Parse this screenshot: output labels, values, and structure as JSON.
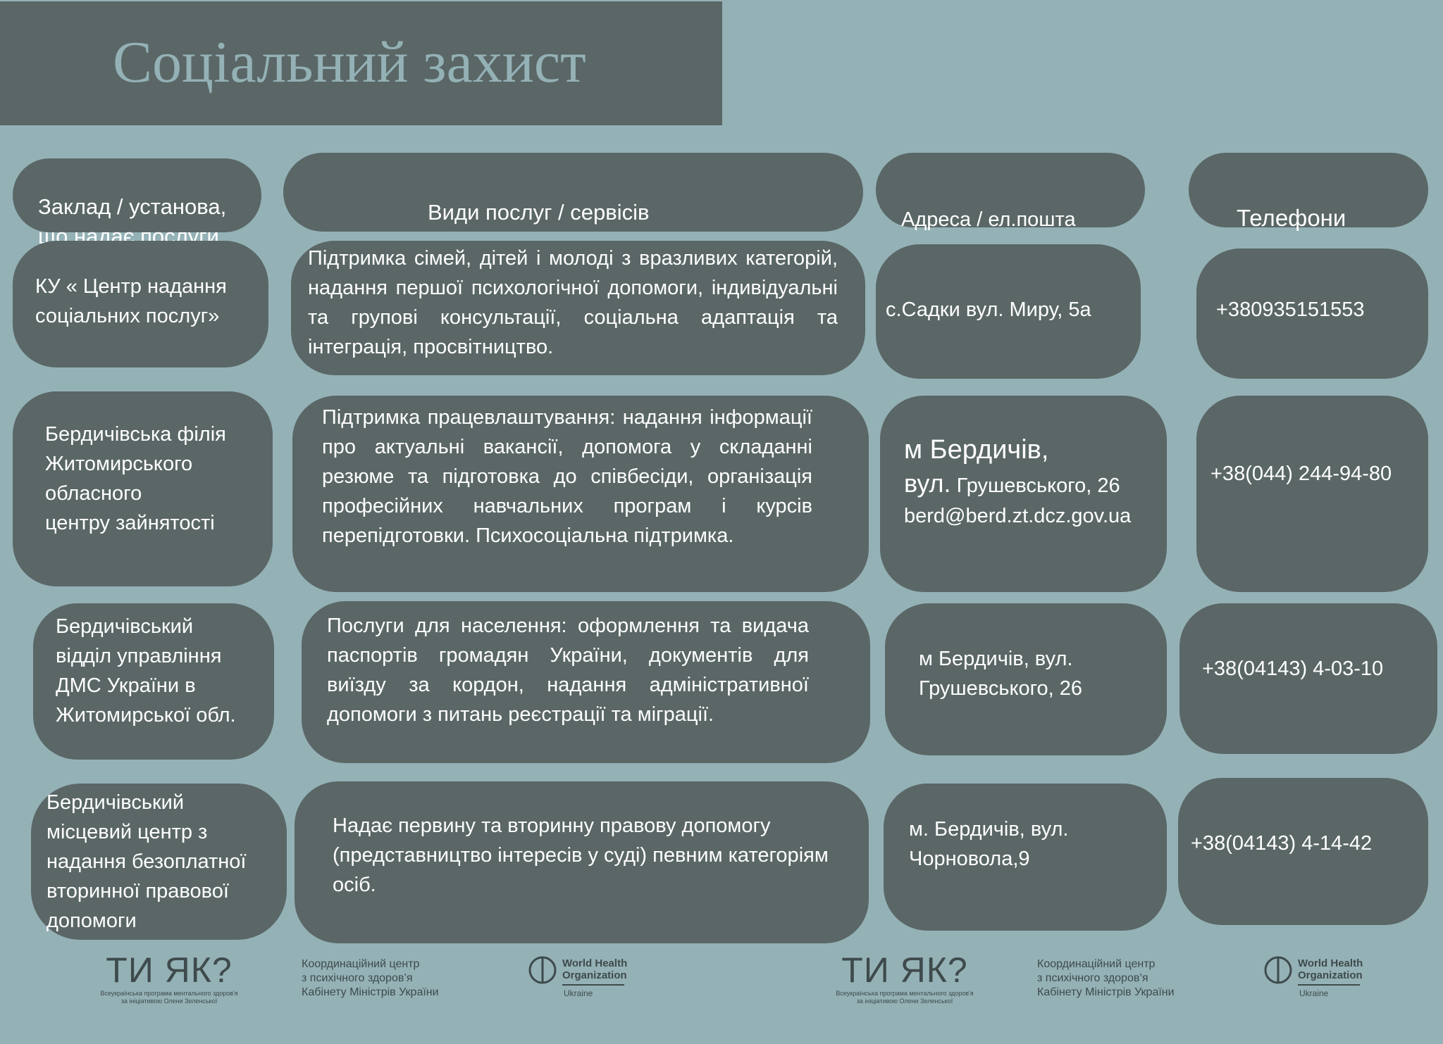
{
  "header": {
    "title": "Соціальний захист"
  },
  "columns": [
    "Заклад / установа,\nщо надає послуги",
    "Види послуг / сервісів",
    "Адреса / ел.пошта",
    "Телефони"
  ],
  "rows": [
    {
      "institution": "КУ « Центр надання\nсоціальних послуг»",
      "services": "Підтримка сімей, дітей і молоді з вразливих категорій, надання першої психологічної допомоги, індивідуальні та групові консультації, соціальна адаптація та інтеграція, просвітництво.",
      "address": "с.Садки вул. Миру, 5а",
      "phone": "+380935151553"
    },
    {
      "institution": "Бердичівська філія\n Житомирського\n обласного\nцентру зайнятості",
      "services": "Підтримка працевлаштування: надання інформації про актуальні вакансії, допомога у складанні резюме та підготовка до співбесіди, організація професійних навчальних програм і курсів перепідготовки. Психосоціальна підтримка.",
      "address_city": "м Бердичів,",
      "address_street_prefix": "вул.",
      "address_street": "Грушевського, 26",
      "email": "berd@berd.zt.dcz.gov.ua",
      "phone": "+38(044) 244-94-80"
    },
    {
      "institution": "Бердичівський\nвідділ управління\nДМС України в\nЖитомирської обл.",
      "services": "Послуги для населення: оформлення та видача паспортів громадян України, документів для виїзду за кордон, надання адміністративної допомоги з питань реєстрації та міграції.",
      "address": "м Бердичів, вул.\nГрушевського, 26",
      "phone": "+38(04143) 4-03-10"
    },
    {
      "institution": "Бердичівський\nмісцевий центр з\nнадання безоплатної\nвторинної правової\nдопомоги",
      "services": "Надає первину та вторинну правову допомогу (представництво інтересів у суді) певним категоріям осіб.",
      "address": "м. Бердичів, вул.\nЧорновола,9",
      "phone": "+38(04143) 4-14-42"
    }
  ],
  "footer": {
    "tiyak": "ТИ ЯК?",
    "tiyak_sub": "Всеукраїнська програма ментального здоров'я\nза ініціативою Олени Зеленської",
    "coord": "Координаційний центр\nз психічного здоров’я\nКабінету Міністрів України",
    "who": "World Health\nOrganization",
    "who_sub": "Ukraine"
  },
  "colors": {
    "background": "#94b1b6",
    "box": "#5a6766",
    "text": "#ffffff"
  }
}
